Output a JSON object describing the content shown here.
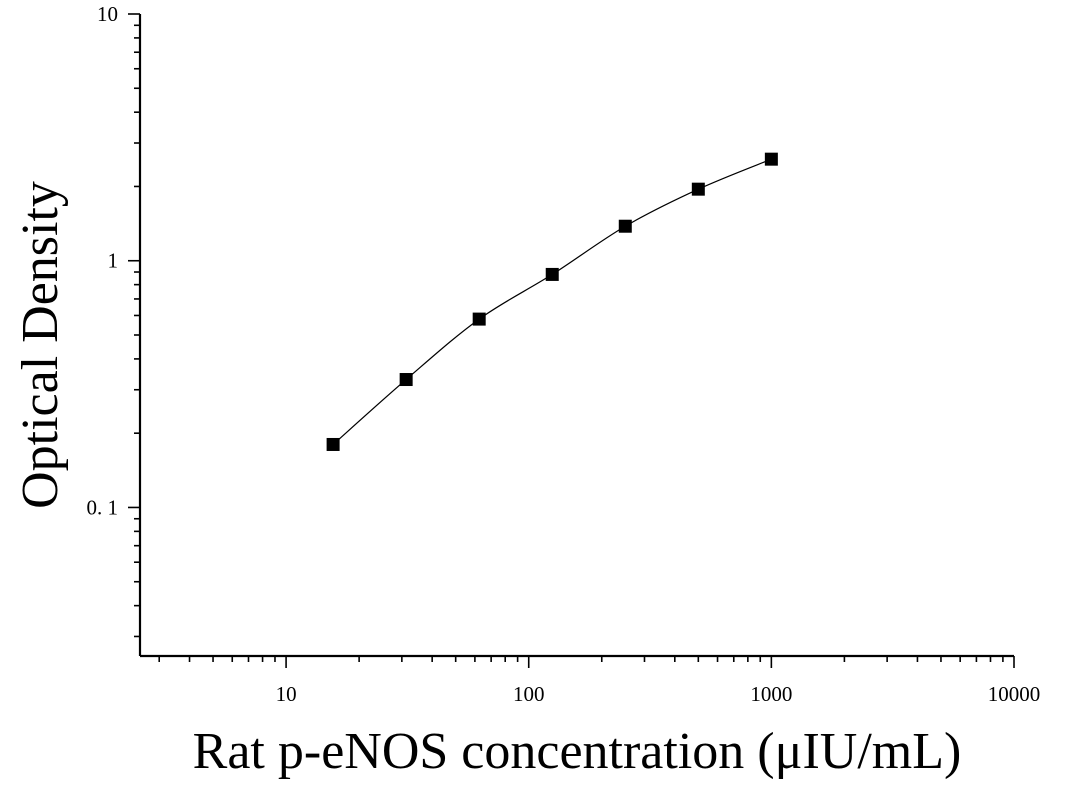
{
  "chart_data": {
    "type": "scatter",
    "title": "",
    "xlabel": "Rat p-eNOS concentration (μIU/mL)",
    "ylabel": "Optical Density",
    "x_scale": "log",
    "y_scale": "log",
    "xlim": [
      2.5,
      10000
    ],
    "ylim": [
      0.025,
      10
    ],
    "x_tick_labels": [
      "10",
      "100",
      "1000",
      "10000"
    ],
    "y_tick_labels": [
      "10",
      "1",
      "0. 1"
    ],
    "grid": false,
    "fit_curve": true,
    "series": [
      {
        "x": [
          15.625,
          31.25,
          62.5,
          125,
          250,
          500,
          1000
        ],
        "y": [
          0.18,
          0.33,
          0.58,
          0.88,
          1.38,
          1.95,
          2.58
        ]
      }
    ]
  }
}
